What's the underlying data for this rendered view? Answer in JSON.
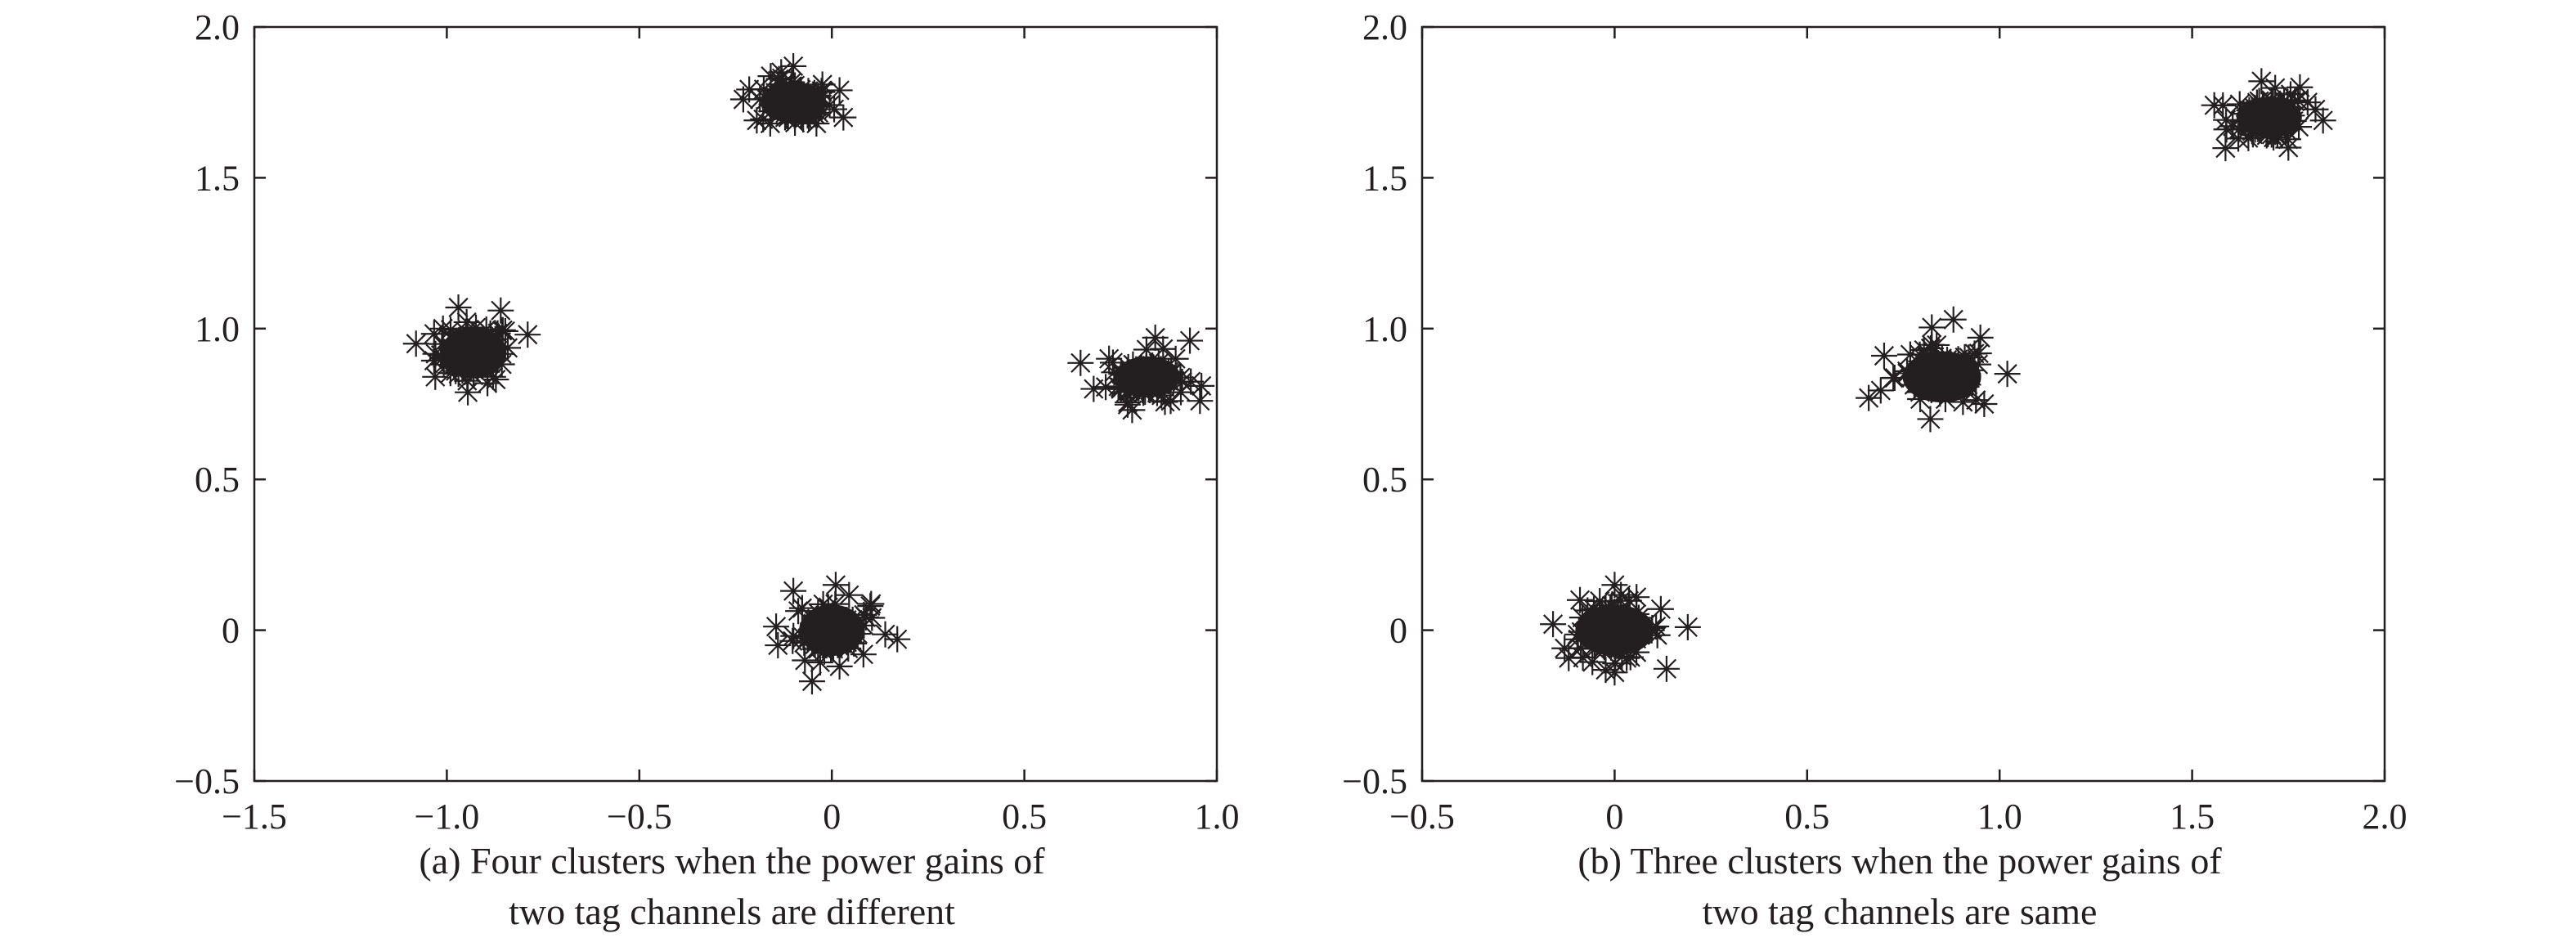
{
  "chart_data": [
    {
      "type": "scatter",
      "marker": "asterisk",
      "color": "#231f20",
      "grid": false,
      "title": "",
      "xlabel": "",
      "ylabel": "",
      "xlim": [
        -1.5,
        1.0
      ],
      "ylim": [
        -0.5,
        2.0
      ],
      "xticks": [
        -1.5,
        -1.0,
        -0.5,
        0,
        0.5,
        1.0
      ],
      "xtick_labels": [
        "−1.5",
        "−1.0",
        "−0.5",
        "0",
        "0.5",
        "1.0"
      ],
      "yticks": [
        -0.5,
        0,
        0.5,
        1.0,
        1.5,
        2.0
      ],
      "ytick_labels": [
        "−0.5",
        "0",
        "0.5",
        "1.0",
        "1.5",
        "2.0"
      ],
      "caption": [
        "(a) Four clusters when the power gains of",
        "two tag channels are different"
      ],
      "clusters": [
        {
          "center": [
            -0.93,
            0.92
          ],
          "spread": [
            0.05,
            0.05
          ],
          "outliers": [
            [
              -1.08,
              0.95
            ],
            [
              -0.97,
              1.07
            ],
            [
              -0.86,
              1.06
            ],
            [
              -0.79,
              0.98
            ],
            [
              -1.03,
              0.84
            ],
            [
              -0.88,
              0.84
            ],
            [
              -1.01,
              1.0
            ]
          ]
        },
        {
          "center": [
            -0.1,
            1.75
          ],
          "spread": [
            0.05,
            0.04
          ],
          "outliers": [
            [
              -0.23,
              1.76
            ],
            [
              -0.1,
              1.87
            ],
            [
              0.02,
              1.79
            ],
            [
              0.03,
              1.7
            ],
            [
              -0.16,
              1.68
            ],
            [
              -0.04,
              1.68
            ],
            [
              -0.13,
              1.83
            ]
          ]
        },
        {
          "center": [
            0.82,
            0.84
          ],
          "spread": [
            0.05,
            0.04
          ],
          "outliers": [
            [
              0.68,
              0.8
            ],
            [
              0.78,
              0.73
            ],
            [
              0.84,
              0.97
            ],
            [
              0.93,
              0.96
            ],
            [
              0.96,
              0.81
            ],
            [
              0.72,
              0.9
            ],
            [
              0.88,
              0.76
            ]
          ]
        },
        {
          "center": [
            0.0,
            0.0
          ],
          "spread": [
            0.05,
            0.05
          ],
          "outliers": [
            [
              -0.14,
              -0.05
            ],
            [
              0.17,
              -0.03
            ],
            [
              -0.1,
              0.13
            ],
            [
              0.01,
              0.15
            ],
            [
              0.02,
              -0.12
            ],
            [
              0.1,
              0.08
            ],
            [
              -0.07,
              -0.1
            ]
          ]
        }
      ]
    },
    {
      "type": "scatter",
      "marker": "asterisk",
      "color": "#231f20",
      "grid": false,
      "title": "",
      "xlabel": "",
      "ylabel": "",
      "xlim": [
        -0.5,
        2.0
      ],
      "ylim": [
        -0.5,
        2.0
      ],
      "xticks": [
        -0.5,
        0,
        0.5,
        1.0,
        1.5,
        2.0
      ],
      "xtick_labels": [
        "−0.5",
        "0",
        "0.5",
        "1.0",
        "1.5",
        "2.0"
      ],
      "yticks": [
        -0.5,
        0,
        0.5,
        1.0,
        1.5,
        2.0
      ],
      "ytick_labels": [
        "−0.5",
        "0",
        "0.5",
        "1.0",
        "1.5",
        "2.0"
      ],
      "caption": [
        "(b) Three clusters when the power gains of",
        "two tag channels are same"
      ],
      "clusters": [
        {
          "center": [
            0.0,
            0.0
          ],
          "spread": [
            0.06,
            0.05
          ],
          "outliers": [
            [
              -0.16,
              0.02
            ],
            [
              0.19,
              0.01
            ],
            [
              -0.13,
              -0.06
            ],
            [
              0.0,
              0.15
            ],
            [
              0.0,
              -0.14
            ],
            [
              0.12,
              0.07
            ],
            [
              -0.09,
              0.1
            ]
          ]
        },
        {
          "center": [
            0.85,
            0.84
          ],
          "spread": [
            0.06,
            0.05
          ],
          "outliers": [
            [
              0.66,
              0.77
            ],
            [
              0.7,
              0.91
            ],
            [
              0.88,
              1.03
            ],
            [
              1.02,
              0.85
            ],
            [
              0.96,
              0.75
            ],
            [
              0.82,
              0.7
            ],
            [
              0.95,
              0.97
            ]
          ]
        },
        {
          "center": [
            1.7,
            1.7
          ],
          "spread": [
            0.05,
            0.04
          ],
          "outliers": [
            [
              1.58,
              1.74
            ],
            [
              1.68,
              1.82
            ],
            [
              1.8,
              1.75
            ],
            [
              1.84,
              1.69
            ],
            [
              1.75,
              1.6
            ],
            [
              1.62,
              1.63
            ],
            [
              1.78,
              1.8
            ]
          ]
        }
      ]
    }
  ]
}
